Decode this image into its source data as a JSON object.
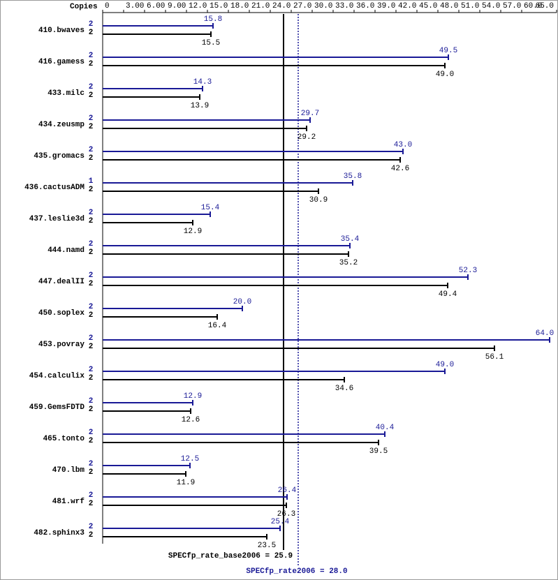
{
  "chart_data": {
    "type": "bar",
    "orientation": "horizontal",
    "axis_label": "Copies",
    "categories": [
      "410.bwaves",
      "416.gamess",
      "433.milc",
      "434.zeusmp",
      "435.gromacs",
      "436.cactusADM",
      "437.leslie3d",
      "444.namd",
      "447.dealII",
      "450.soplex",
      "453.povray",
      "454.calculix",
      "459.GemsFDTD",
      "465.tonto",
      "470.lbm",
      "481.wrf",
      "482.sphinx3"
    ],
    "series": [
      {
        "color": "#191996",
        "copies": [
          2,
          2,
          2,
          2,
          2,
          1,
          2,
          2,
          2,
          2,
          2,
          2,
          2,
          2,
          2,
          2,
          2
        ],
        "values": [
          15.8,
          49.5,
          14.3,
          29.7,
          43.0,
          35.8,
          15.4,
          35.4,
          52.3,
          20.0,
          64.0,
          49.0,
          12.9,
          40.4,
          12.5,
          26.4,
          25.4
        ],
        "value_labels": [
          "15.8",
          "49.5",
          "14.3",
          "29.7",
          "43.0",
          "35.8",
          "15.4",
          "35.4",
          "52.3",
          "20.0",
          "64.0",
          "49.0",
          "12.9",
          "40.4",
          "12.5",
          "26.4",
          "25.4"
        ]
      },
      {
        "color": "#000000",
        "copies": [
          2,
          2,
          2,
          2,
          2,
          2,
          2,
          2,
          2,
          2,
          2,
          2,
          2,
          2,
          2,
          2,
          2
        ],
        "values": [
          15.5,
          49.0,
          13.9,
          29.2,
          42.6,
          30.9,
          12.9,
          35.2,
          49.4,
          16.4,
          56.1,
          34.6,
          12.6,
          39.5,
          11.9,
          26.3,
          23.5
        ],
        "value_labels": [
          "15.5",
          "49.0",
          "13.9",
          "29.2",
          "42.6",
          "30.9",
          "12.9",
          "35.2",
          "49.4",
          "16.4",
          "56.1",
          "34.6",
          "12.6",
          "39.5",
          "11.9",
          "26.3",
          "23.5"
        ]
      }
    ],
    "xlim": [
      0,
      65
    ],
    "xticks": [
      0,
      {
        "value": 3,
        "label": "3.00"
      },
      {
        "value": 6,
        "label": "6.00"
      },
      {
        "value": 9,
        "label": "9.00"
      },
      {
        "value": 12,
        "label": "12.0"
      },
      {
        "value": 15,
        "label": "15.0"
      },
      {
        "value": 18,
        "label": "18.0"
      },
      {
        "value": 21,
        "label": "21.0"
      },
      {
        "value": 24,
        "label": "24.0"
      },
      {
        "value": 27,
        "label": "27.0"
      },
      {
        "value": 30,
        "label": "30.0"
      },
      {
        "value": 33,
        "label": "33.0"
      },
      {
        "value": 36,
        "label": "36.0"
      },
      {
        "value": 39,
        "label": "39.0"
      },
      {
        "value": 42,
        "label": "42.0"
      },
      {
        "value": 45,
        "label": "45.0"
      },
      {
        "value": 48,
        "label": "48.0"
      },
      {
        "value": 51,
        "label": "51.0"
      },
      {
        "value": 54,
        "label": "54.0"
      },
      {
        "value": 57,
        "label": "57.0"
      },
      {
        "value": 60,
        "label": "60.0"
      },
      {
        "value": 65,
        "label": "65.0"
      }
    ],
    "reference_lines": [
      {
        "label": "SPECfp_rate_base2006 = 25.9",
        "value": 25.9,
        "color": "#000000",
        "dashed": false
      },
      {
        "label": "SPECfp_rate2006 = 28.0",
        "value": 28.0,
        "color": "#191996",
        "dashed": true
      }
    ]
  }
}
